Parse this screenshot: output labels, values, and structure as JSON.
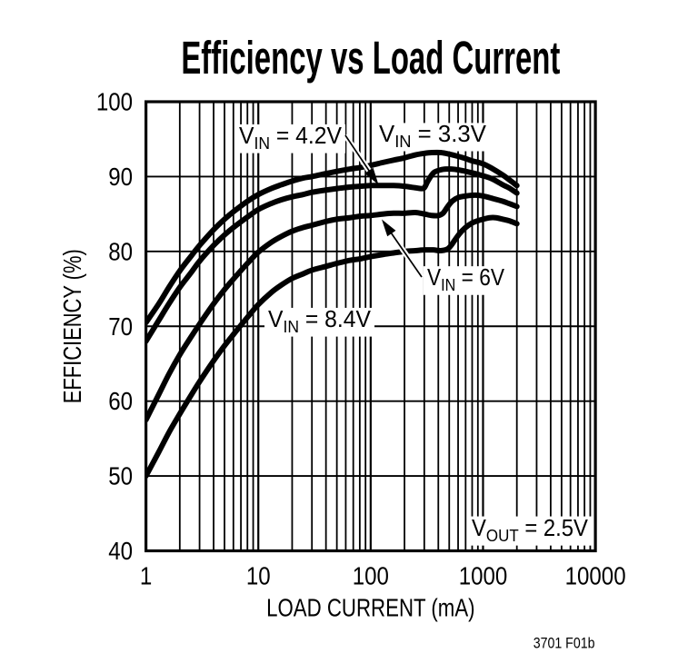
{
  "title": "Efficiency vs Load Current",
  "figure_label": "3701 F01b",
  "colors": {
    "ink": "#000000",
    "background": "#ffffff"
  },
  "axes": {
    "x": {
      "label": "LOAD CURRENT (mA)",
      "scale": "log",
      "min": 1,
      "max": 10000,
      "tick_labels": [
        "1",
        "10",
        "100",
        "1000",
        "10000"
      ]
    },
    "y": {
      "label": "EFFICIENCY (%)",
      "scale": "linear",
      "min": 40,
      "max": 100,
      "tick_step": 10,
      "tick_labels": [
        "40",
        "50",
        "60",
        "70",
        "80",
        "90",
        "100"
      ]
    }
  },
  "annotations": [
    {
      "pre": "V",
      "sub": "IN",
      "post": " = 4.2V",
      "boxed": true,
      "arrow": true
    },
    {
      "pre": "V",
      "sub": "IN",
      "post": " = 3.3V",
      "boxed": true,
      "arrow": false
    },
    {
      "pre": "V",
      "sub": "IN",
      "post": " = 6V",
      "boxed": true,
      "arrow": true
    },
    {
      "pre": "V",
      "sub": "IN",
      "post": " = 8.4V",
      "boxed": true,
      "arrow": false
    },
    {
      "pre": "V",
      "sub": "OUT",
      "post": " = 2.5V",
      "boxed": true,
      "arrow": false
    }
  ],
  "chart_data": {
    "type": "line",
    "title": "Efficiency vs Load Current",
    "xlabel": "LOAD CURRENT (mA)",
    "ylabel": "EFFICIENCY (%)",
    "xscale": "log",
    "xlim": [
      1,
      10000
    ],
    "ylim": [
      40,
      100
    ],
    "grid": "on",
    "series": [
      {
        "name": "VIN = 3.3V",
        "points": [
          [
            1,
            70.5
          ],
          [
            1.3,
            73.0
          ],
          [
            1.6,
            75.2
          ],
          [
            2,
            77.4
          ],
          [
            2.5,
            79.3
          ],
          [
            3,
            80.8
          ],
          [
            4,
            82.9
          ],
          [
            5,
            84.3
          ],
          [
            6,
            85.3
          ],
          [
            8,
            86.7
          ],
          [
            10,
            87.6
          ],
          [
            13,
            88.4
          ],
          [
            16,
            88.9
          ],
          [
            20,
            89.4
          ],
          [
            25,
            89.8
          ],
          [
            30,
            90.0
          ],
          [
            40,
            90.4
          ],
          [
            50,
            90.7
          ],
          [
            65,
            91.0
          ],
          [
            80,
            91.2
          ],
          [
            100,
            91.5
          ],
          [
            130,
            91.9
          ],
          [
            160,
            92.2
          ],
          [
            200,
            92.5
          ],
          [
            250,
            92.9
          ],
          [
            300,
            93.1
          ],
          [
            350,
            93.2
          ],
          [
            420,
            93.2
          ],
          [
            500,
            93.0
          ],
          [
            600,
            92.7
          ],
          [
            700,
            92.4
          ],
          [
            800,
            92.1
          ],
          [
            1000,
            91.7
          ],
          [
            1200,
            91.1
          ],
          [
            1500,
            90.2
          ],
          [
            1700,
            89.6
          ],
          [
            2000,
            88.8
          ]
        ]
      },
      {
        "name": "VIN = 4.2V",
        "points": [
          [
            1,
            68.0
          ],
          [
            1.3,
            70.8
          ],
          [
            1.6,
            73.0
          ],
          [
            2,
            75.2
          ],
          [
            2.5,
            77.1
          ],
          [
            3,
            78.7
          ],
          [
            4,
            80.8
          ],
          [
            5,
            82.2
          ],
          [
            6,
            83.2
          ],
          [
            8,
            84.6
          ],
          [
            10,
            85.6
          ],
          [
            13,
            86.4
          ],
          [
            16,
            86.9
          ],
          [
            20,
            87.3
          ],
          [
            25,
            87.6
          ],
          [
            30,
            87.9
          ],
          [
            40,
            88.2
          ],
          [
            50,
            88.4
          ],
          [
            65,
            88.6
          ],
          [
            80,
            88.7
          ],
          [
            100,
            88.8
          ],
          [
            130,
            88.8
          ],
          [
            160,
            88.8
          ],
          [
            200,
            88.7
          ],
          [
            250,
            88.5
          ],
          [
            280,
            88.4
          ],
          [
            300,
            88.5
          ],
          [
            320,
            89.3
          ],
          [
            345,
            90.1
          ],
          [
            370,
            90.6
          ],
          [
            420,
            90.9
          ],
          [
            470,
            91.0
          ],
          [
            520,
            91.0
          ],
          [
            600,
            90.9
          ],
          [
            700,
            90.7
          ],
          [
            800,
            90.5
          ],
          [
            1000,
            90.1
          ],
          [
            1200,
            89.7
          ],
          [
            1500,
            88.9
          ],
          [
            1700,
            88.5
          ],
          [
            2000,
            87.8
          ]
        ]
      },
      {
        "name": "VIN = 6V",
        "points": [
          [
            1,
            57.5
          ],
          [
            1.3,
            60.9
          ],
          [
            1.6,
            63.6
          ],
          [
            2,
            66.2
          ],
          [
            2.5,
            68.5
          ],
          [
            3,
            70.3
          ],
          [
            4,
            73.0
          ],
          [
            5,
            74.9
          ],
          [
            6,
            76.3
          ],
          [
            8,
            78.4
          ],
          [
            10,
            79.9
          ],
          [
            13,
            81.2
          ],
          [
            16,
            82.0
          ],
          [
            20,
            82.7
          ],
          [
            25,
            83.2
          ],
          [
            30,
            83.5
          ],
          [
            40,
            84.0
          ],
          [
            50,
            84.3
          ],
          [
            65,
            84.5
          ],
          [
            80,
            84.7
          ],
          [
            100,
            84.8
          ],
          [
            130,
            85.0
          ],
          [
            160,
            85.1
          ],
          [
            200,
            85.1
          ],
          [
            250,
            85.2
          ],
          [
            300,
            85.0
          ],
          [
            350,
            84.8
          ],
          [
            400,
            84.8
          ],
          [
            440,
            85.1
          ],
          [
            480,
            85.9
          ],
          [
            530,
            86.7
          ],
          [
            600,
            87.2
          ],
          [
            700,
            87.4
          ],
          [
            800,
            87.5
          ],
          [
            900,
            87.5
          ],
          [
            1000,
            87.4
          ],
          [
            1200,
            87.1
          ],
          [
            1500,
            86.7
          ],
          [
            1700,
            86.4
          ],
          [
            2000,
            86.0
          ]
        ]
      },
      {
        "name": "VIN = 8.4V",
        "points": [
          [
            1,
            50.0
          ],
          [
            1.3,
            53.2
          ],
          [
            1.6,
            55.8
          ],
          [
            2,
            58.3
          ],
          [
            2.5,
            60.7
          ],
          [
            3,
            62.6
          ],
          [
            4,
            65.4
          ],
          [
            5,
            67.4
          ],
          [
            6,
            68.9
          ],
          [
            8,
            71.2
          ],
          [
            10,
            72.9
          ],
          [
            13,
            74.5
          ],
          [
            16,
            75.5
          ],
          [
            20,
            76.4
          ],
          [
            25,
            77.0
          ],
          [
            30,
            77.5
          ],
          [
            40,
            78.0
          ],
          [
            50,
            78.4
          ],
          [
            65,
            78.8
          ],
          [
            80,
            79.0
          ],
          [
            100,
            79.3
          ],
          [
            130,
            79.6
          ],
          [
            160,
            79.8
          ],
          [
            200,
            80.0
          ],
          [
            250,
            80.1
          ],
          [
            300,
            80.2
          ],
          [
            360,
            80.2
          ],
          [
            420,
            80.1
          ],
          [
            480,
            80.3
          ],
          [
            520,
            80.8
          ],
          [
            560,
            81.5
          ],
          [
            620,
            82.4
          ],
          [
            700,
            83.2
          ],
          [
            800,
            83.8
          ],
          [
            900,
            84.1
          ],
          [
            1000,
            84.3
          ],
          [
            1150,
            84.5
          ],
          [
            1300,
            84.5
          ],
          [
            1500,
            84.3
          ],
          [
            1700,
            84.1
          ],
          [
            2000,
            83.7
          ]
        ]
      }
    ]
  }
}
